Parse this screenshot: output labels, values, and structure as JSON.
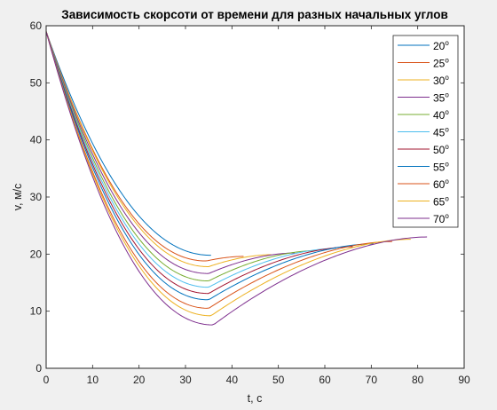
{
  "chart_data": {
    "type": "line",
    "title": "Зависимость скорсоти от времени для разных начальных углов",
    "xlabel": "t, c",
    "ylabel": "v, м/с",
    "xlim": [
      0,
      90
    ],
    "ylim": [
      0,
      60
    ],
    "xticks": [
      0,
      10,
      20,
      30,
      40,
      50,
      60,
      70,
      80,
      90
    ],
    "yticks": [
      0,
      10,
      20,
      30,
      40,
      50,
      60
    ],
    "grid": false,
    "legend_position": "top-right",
    "degree_symbol": "o",
    "v0": 59,
    "series": [
      {
        "name": "20",
        "color": "#0072bd",
        "t_end": 35.5,
        "v_min": 19.8,
        "t_min": 35.5,
        "v_end": 19.8
      },
      {
        "name": "25",
        "color": "#d95319",
        "t_end": 42.5,
        "v_min": 18.8,
        "t_min": 34.5,
        "v_end": 19.6
      },
      {
        "name": "30",
        "color": "#edb120",
        "t_end": 48.5,
        "v_min": 17.8,
        "t_min": 35.0,
        "v_end": 19.9
      },
      {
        "name": "35",
        "color": "#7e2f8e",
        "t_end": 53.5,
        "v_min": 16.6,
        "t_min": 35.0,
        "v_end": 20.2
      },
      {
        "name": "40",
        "color": "#77ac30",
        "t_end": 58.0,
        "v_min": 15.3,
        "t_min": 35.0,
        "v_end": 20.6
      },
      {
        "name": "45",
        "color": "#4dbeee",
        "t_end": 62.5,
        "v_min": 14.2,
        "t_min": 35.0,
        "v_end": 21.0
      },
      {
        "name": "50",
        "color": "#a2142f",
        "t_end": 66.0,
        "v_min": 13.1,
        "t_min": 35.0,
        "v_end": 21.3
      },
      {
        "name": "55",
        "color": "#0072bd",
        "t_end": 70.5,
        "v_min": 12.0,
        "t_min": 35.0,
        "v_end": 21.8
      },
      {
        "name": "60",
        "color": "#d95319",
        "t_end": 74.5,
        "v_min": 10.5,
        "t_min": 35.0,
        "v_end": 22.2
      },
      {
        "name": "65",
        "color": "#edb120",
        "t_end": 78.5,
        "v_min": 9.2,
        "t_min": 35.5,
        "v_end": 22.6
      },
      {
        "name": "70",
        "color": "#7e2f8e",
        "t_end": 82.0,
        "v_min": 7.6,
        "t_min": 36.0,
        "v_end": 23.0
      }
    ]
  }
}
